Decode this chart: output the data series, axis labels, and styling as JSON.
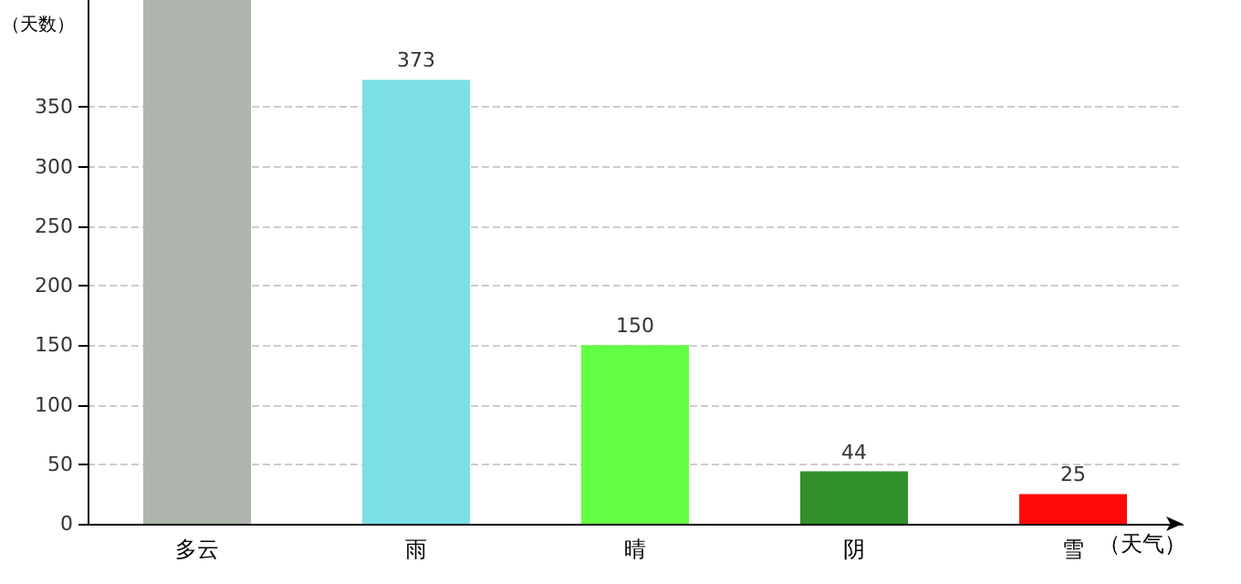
{
  "chart_data": {
    "type": "bar",
    "xlabel": "（天气）",
    "ylabel": "（天数）",
    "categories": [
      "多云",
      "雨",
      "晴",
      "阴",
      "雪"
    ],
    "values": [
      440,
      373,
      150,
      44,
      25
    ],
    "value_labels": [
      null,
      "373",
      "150",
      "44",
      "25"
    ],
    "colors": [
      "#adb5ad",
      "#7bdfe7",
      "#63ff42",
      "#319029",
      "#ff0808"
    ],
    "ylim": [
      0,
      440
    ],
    "yticks": [
      0,
      50,
      100,
      150,
      200,
      250,
      300,
      350
    ],
    "grid": "y"
  }
}
